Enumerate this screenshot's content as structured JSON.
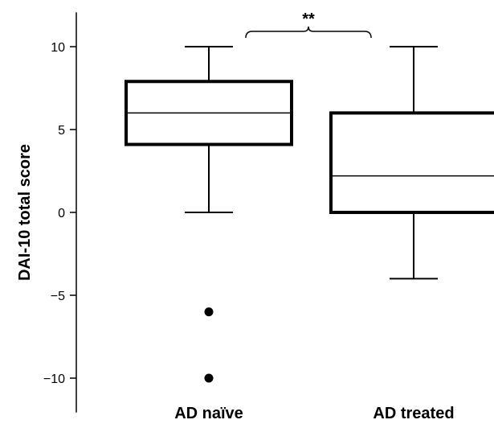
{
  "chart_data": {
    "type": "box",
    "title": "",
    "xlabel": "",
    "ylabel": "DAI-10 total score",
    "ylim": [
      -11,
      11
    ],
    "yticks": [
      10,
      5,
      0,
      -5,
      -10
    ],
    "ytick_labels": [
      "10",
      "5",
      "0",
      "−5",
      "−10"
    ],
    "categories": [
      "AD naïve",
      "AD treated"
    ],
    "boxes": [
      {
        "whisker_low": 0,
        "q1": 4.1,
        "median": 6,
        "q3": 7.9,
        "whisker_high": 10,
        "outliers": [
          -6,
          -10
        ]
      },
      {
        "whisker_low": -4,
        "q1": 0,
        "median": 2.2,
        "q3": 6,
        "whisker_high": 10,
        "outliers": []
      }
    ],
    "significance": {
      "label": "**",
      "between": [
        0,
        1
      ]
    },
    "grid": false,
    "legend": "none"
  }
}
